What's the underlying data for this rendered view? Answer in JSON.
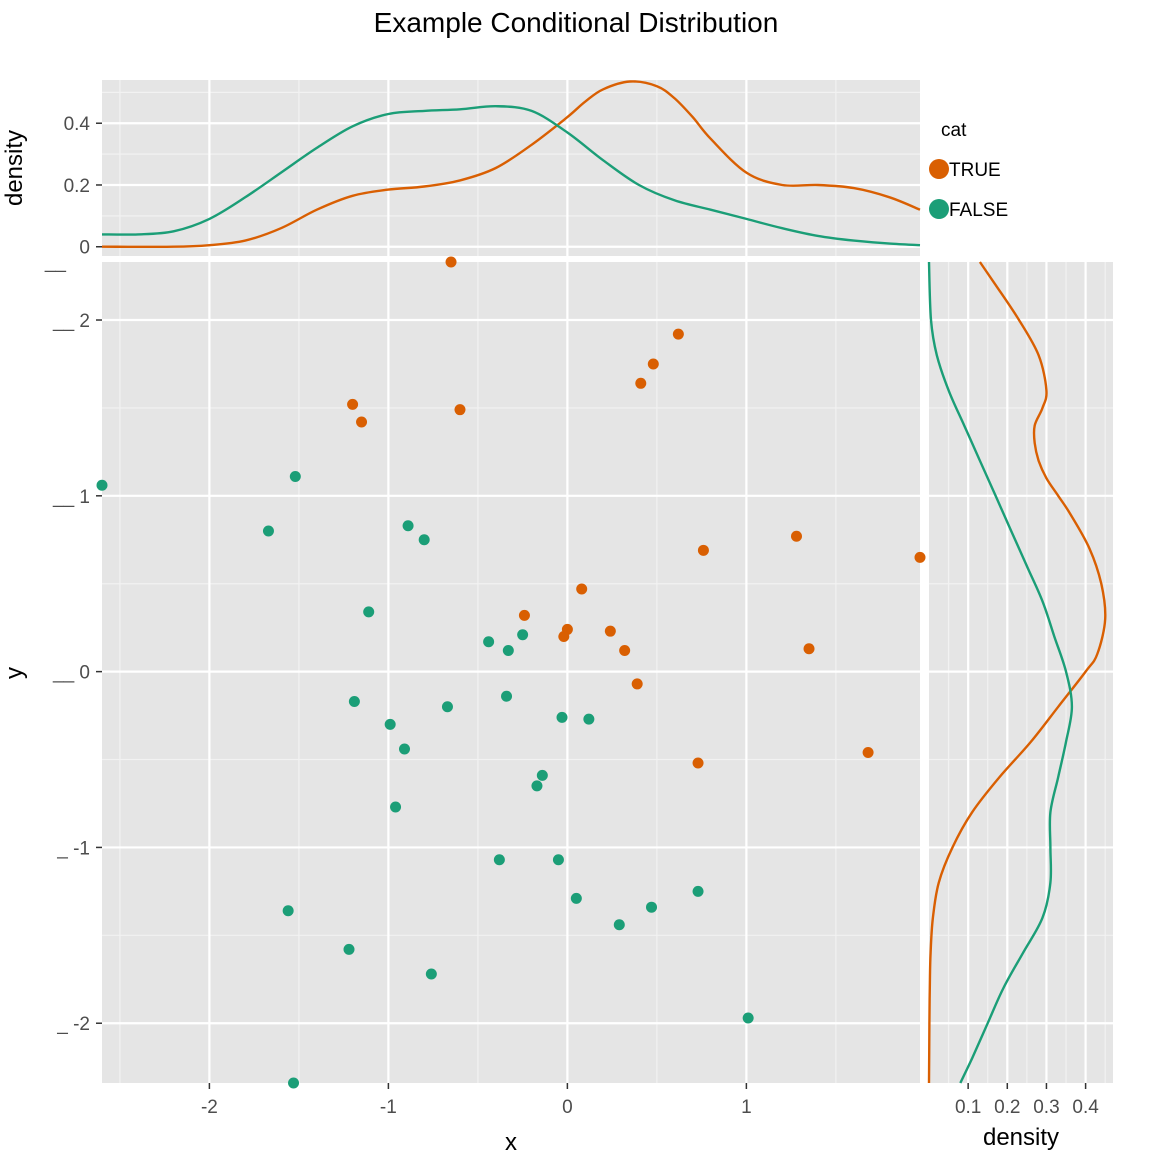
{
  "chart_data": {
    "type": "scatter",
    "title": "Example Conditional Distribution",
    "xlabel": "x",
    "ylabel": "y",
    "xlim": [
      -2.6,
      1.97
    ],
    "ylim": [
      -2.34,
      2.33
    ],
    "x_ticks": [
      -2,
      -1,
      0,
      1
    ],
    "x_tick_labels": [
      "-2",
      "-1",
      "0",
      "1"
    ],
    "y_ticks": [
      -2,
      -1,
      0,
      1,
      2
    ],
    "y_tick_labels": [
      "_ -2",
      "_ -1",
      "__ 0",
      "__ 1",
      "__ 2"
    ],
    "top_marginal": {
      "ylabel": "density",
      "ylim": [
        -0.03,
        0.54
      ],
      "y_ticks": [
        0,
        0.2,
        0.4
      ],
      "y_tick_labels": [
        "0",
        "0.2",
        "0.4"
      ],
      "y_extra_tick_label": "__",
      "series": [
        {
          "name": "TRUE",
          "x": [
            -2.6,
            -2.2,
            -2.0,
            -1.8,
            -1.6,
            -1.4,
            -1.2,
            -1.0,
            -0.8,
            -0.6,
            -0.4,
            -0.2,
            0.0,
            0.1,
            0.2,
            0.35,
            0.5,
            0.6,
            0.7,
            0.8,
            1.0,
            1.2,
            1.4,
            1.6,
            1.8,
            1.97
          ],
          "y": [
            0,
            0,
            0.005,
            0.02,
            0.06,
            0.12,
            0.165,
            0.185,
            0.195,
            0.215,
            0.255,
            0.33,
            0.42,
            0.47,
            0.51,
            0.535,
            0.52,
            0.48,
            0.42,
            0.35,
            0.24,
            0.2,
            0.2,
            0.19,
            0.16,
            0.12
          ]
        },
        {
          "name": "FALSE",
          "x": [
            -2.6,
            -2.4,
            -2.2,
            -2.0,
            -1.8,
            -1.6,
            -1.4,
            -1.2,
            -1.0,
            -0.8,
            -0.6,
            -0.4,
            -0.2,
            0.0,
            0.2,
            0.4,
            0.6,
            0.8,
            1.0,
            1.2,
            1.4,
            1.6,
            1.8,
            1.97
          ],
          "y": [
            0.04,
            0.04,
            0.05,
            0.09,
            0.16,
            0.24,
            0.32,
            0.39,
            0.43,
            0.44,
            0.445,
            0.455,
            0.44,
            0.37,
            0.28,
            0.2,
            0.15,
            0.12,
            0.09,
            0.06,
            0.035,
            0.02,
            0.01,
            0.005
          ]
        }
      ]
    },
    "right_marginal": {
      "xlabel": "density",
      "xlim": [
        0.0,
        0.47
      ],
      "x_ticks": [
        0.1,
        0.2,
        0.3,
        0.4
      ],
      "x_tick_labels": [
        "0.1",
        "0.2",
        "0.3",
        "0.4"
      ],
      "series": [
        {
          "name": "TRUE",
          "y": [
            2.33,
            2.2,
            2.0,
            1.8,
            1.6,
            1.5,
            1.4,
            1.3,
            1.2,
            1.1,
            1.0,
            0.9,
            0.7,
            0.5,
            0.3,
            0.1,
            0.0,
            -0.2,
            -0.4,
            -0.6,
            -0.8,
            -1.0,
            -1.2,
            -1.4,
            -1.6,
            -1.8,
            -2.0,
            -2.34
          ],
          "x": [
            0.13,
            0.17,
            0.23,
            0.28,
            0.3,
            0.29,
            0.27,
            0.27,
            0.28,
            0.3,
            0.33,
            0.36,
            0.41,
            0.44,
            0.45,
            0.43,
            0.4,
            0.33,
            0.26,
            0.18,
            0.11,
            0.06,
            0.025,
            0.01,
            0.004,
            0.002,
            0.001,
            0.0
          ]
        },
        {
          "name": "FALSE",
          "y": [
            2.33,
            2.0,
            1.8,
            1.6,
            1.4,
            1.2,
            1.0,
            0.8,
            0.6,
            0.4,
            0.2,
            0.0,
            -0.2,
            -0.4,
            -0.6,
            -0.8,
            -1.0,
            -1.2,
            -1.4,
            -1.6,
            -1.8,
            -2.0,
            -2.2,
            -2.34
          ],
          "x": [
            0.0,
            0.005,
            0.02,
            0.05,
            0.09,
            0.13,
            0.17,
            0.21,
            0.25,
            0.29,
            0.32,
            0.35,
            0.365,
            0.35,
            0.33,
            0.31,
            0.31,
            0.31,
            0.29,
            0.24,
            0.19,
            0.15,
            0.11,
            0.08
          ]
        }
      ]
    },
    "series": [
      {
        "name": "TRUE",
        "color": "#d95f02",
        "x": [
          -0.65,
          0.62,
          0.48,
          0.41,
          -1.2,
          -0.6,
          -1.15,
          0.76,
          1.28,
          1.97,
          0.08,
          -0.24,
          0.0,
          -0.02,
          0.24,
          0.32,
          1.35,
          0.39,
          0.73,
          1.68
        ],
        "y": [
          2.33,
          1.92,
          1.75,
          1.64,
          1.52,
          1.49,
          1.42,
          0.69,
          0.77,
          0.65,
          0.47,
          0.32,
          0.24,
          0.2,
          0.23,
          0.12,
          0.13,
          -0.07,
          -0.52,
          -0.46
        ]
      },
      {
        "name": "FALSE",
        "color": "#1b9e77",
        "x": [
          -2.6,
          -1.52,
          -1.67,
          -0.89,
          -0.8,
          -1.11,
          -0.44,
          -0.25,
          -0.33,
          -1.19,
          -0.67,
          -0.34,
          -0.03,
          0.12,
          -0.99,
          -0.91,
          -0.14,
          -0.17,
          -0.96,
          -0.38,
          -0.05,
          0.05,
          0.29,
          0.47,
          0.73,
          -1.56,
          -1.22,
          -0.76,
          1.01,
          -1.53
        ],
        "y": [
          1.06,
          1.11,
          0.8,
          0.83,
          0.75,
          0.34,
          0.17,
          0.21,
          0.12,
          -0.17,
          -0.2,
          -0.14,
          -0.26,
          -0.27,
          -0.3,
          -0.44,
          -0.59,
          -0.65,
          -0.77,
          -1.07,
          -1.07,
          -1.29,
          -1.44,
          -1.34,
          -1.25,
          -1.36,
          -1.58,
          -1.72,
          -1.97,
          -2.34
        ]
      }
    ],
    "legend": {
      "title": "cat",
      "entries": [
        "TRUE",
        "FALSE"
      ],
      "colors": [
        "#d95f02",
        "#1b9e77"
      ],
      "position": "top-right"
    }
  }
}
